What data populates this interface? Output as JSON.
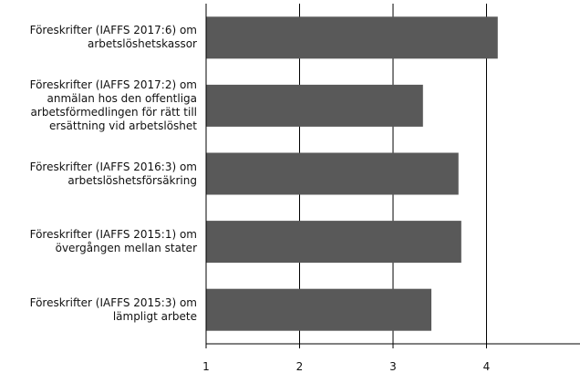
{
  "chart_data": {
    "type": "bar",
    "orientation": "horizontal",
    "categories": [
      "Föreskrifter (IAFFS 2017:6) om arbetslöshetskassor",
      "Föreskrifter (IAFFS 2017:2) om anmälan hos den offentliga arbetsförmedlingen för rätt till ersättning vid arbetslöshet",
      "Föreskrifter (IAFFS 2016:3) om arbetslöshetsförsäkring",
      "Föreskrifter (IAFFS 2015:1) om övergången mellan stater",
      "Föreskrifter (IAFFS 2015:3) om lämpligt arbete"
    ],
    "category_lines": [
      [
        "Föreskrifter (IAFFS 2017:6) om",
        "arbetslöshetskassor"
      ],
      [
        "Föreskrifter (IAFFS 2017:2) om",
        "anmälan hos den offentliga",
        "arbetsförmedlingen för rätt till",
        "ersättning vid arbetslöshet"
      ],
      [
        "Föreskrifter (IAFFS 2016:3) om",
        "arbetslöshetsförsäkring"
      ],
      [
        "Föreskrifter (IAFFS 2015:1) om",
        "övergången mellan stater"
      ],
      [
        "Föreskrifter (IAFFS 2015:3) om",
        "lämpligt arbete"
      ]
    ],
    "values": [
      4.12,
      3.32,
      3.7,
      3.73,
      3.41
    ],
    "xlim": [
      1,
      5
    ],
    "xticks": [
      "1",
      "2",
      "3",
      "4"
    ],
    "grid": true,
    "bar_color": "#595959",
    "title": "",
    "xlabel": "",
    "ylabel": ""
  }
}
